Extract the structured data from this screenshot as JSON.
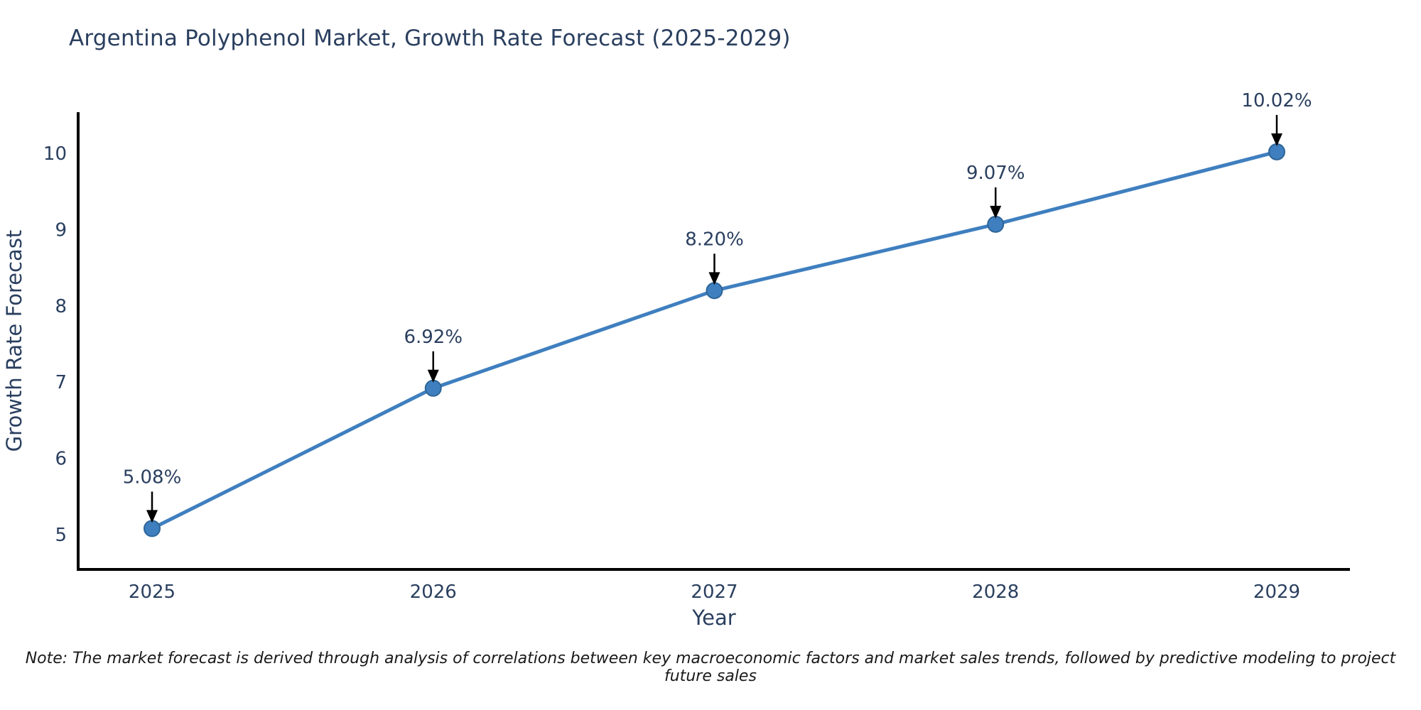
{
  "title": "Argentina Polyphenol Market, Growth Rate Forecast (2025-2029)",
  "note": "Note: The market forecast is derived through analysis of correlations between key macroeconomic factors and market sales trends, followed by predictive modeling to project future sales",
  "colors": {
    "text": "#2a3f5f",
    "axis_line": "#000000",
    "line": "#3f7fbf",
    "marker_fill": "#3f7fbf",
    "marker_edge": "#2e6597",
    "arrow": "#000000",
    "note_text": "#1a1a1a"
  },
  "chart_data": {
    "type": "line",
    "title": "Argentina Polyphenol Market, Growth Rate Forecast (2025-2029)",
    "categories": [
      "2025",
      "2026",
      "2027",
      "2028",
      "2029"
    ],
    "values": [
      5.08,
      6.92,
      8.2,
      9.07,
      10.02
    ],
    "point_labels": [
      "5.08%",
      "6.92%",
      "8.20%",
      "9.07%",
      "10.02%"
    ],
    "xlabel": "Year",
    "ylabel": "Growth Rate Forecast",
    "yticks": [
      5,
      6,
      7,
      8,
      9,
      10
    ],
    "ylim": [
      4.55,
      10.55
    ],
    "grid": false,
    "legend": "none",
    "marker": "circle",
    "annotation_arrows": true
  }
}
